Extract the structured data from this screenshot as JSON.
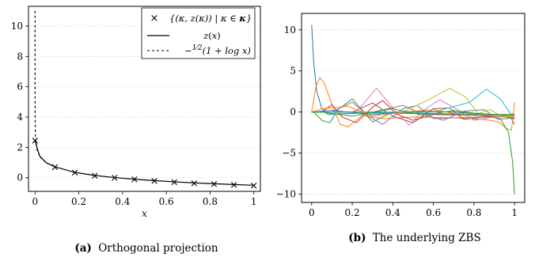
{
  "chart_data": [
    {
      "id": "a",
      "type": "line",
      "caption_label": "(a)",
      "caption_text": "Orthogonal projection",
      "xlabel": "x",
      "ylabel": "",
      "xlim": [
        -0.03,
        1.03
      ],
      "ylim": [
        -0.9,
        11.3
      ],
      "xticks": [
        0,
        0.2,
        0.4,
        0.6,
        0.8,
        1
      ],
      "xtick_labels": [
        "0",
        "0.2",
        "0.4",
        "0.6",
        "0.8",
        "1"
      ],
      "yticks": [
        0,
        2,
        4,
        6,
        8,
        10
      ],
      "ytick_labels": [
        "0",
        "2",
        "4",
        "6",
        "8",
        "10"
      ],
      "grid": "horizontal dotted",
      "legend_placement": "top-right",
      "legend": [
        {
          "marker": "×",
          "label": "{(κ, z(κ)) | κ ∈ κ}"
        },
        {
          "marker": "solid",
          "label": "z(x)"
        },
        {
          "marker": "dashed",
          "label": "−½(1 + log x)"
        }
      ],
      "series": [
        {
          "name": "{(κ, z(κ)) | κ ∈ κ}",
          "style": "marker-x",
          "color": "#000000",
          "points": [
            [
              0,
              2.45
            ],
            [
              0.0909,
              0.72
            ],
            [
              0.1818,
              0.35
            ],
            [
              0.2727,
              0.15
            ],
            [
              0.3636,
              0.01
            ],
            [
              0.4545,
              -0.1
            ],
            [
              0.5455,
              -0.19
            ],
            [
              0.6364,
              -0.27
            ],
            [
              0.7273,
              -0.34
            ],
            [
              0.8182,
              -0.4
            ],
            [
              0.9091,
              -0.45
            ],
            [
              1,
              -0.5
            ]
          ]
        },
        {
          "name": "z(x)",
          "style": "solid",
          "color": "#000000",
          "points": [
            [
              0,
              2.45
            ],
            [
              0.02,
              1.45
            ],
            [
              0.05,
              1.0
            ],
            [
              0.0909,
              0.72
            ],
            [
              0.1818,
              0.35
            ],
            [
              0.2727,
              0.15
            ],
            [
              0.3636,
              0.01
            ],
            [
              0.4545,
              -0.1
            ],
            [
              0.5455,
              -0.19
            ],
            [
              0.6364,
              -0.27
            ],
            [
              0.7273,
              -0.34
            ],
            [
              0.8182,
              -0.4
            ],
            [
              0.9091,
              -0.45
            ],
            [
              1,
              -0.5
            ]
          ]
        },
        {
          "name": "−½(1 + log x)",
          "style": "dashed",
          "color": "#000000",
          "points": [
            [
              1e-07,
              11.0
            ],
            [
              4e-07,
              10.2
            ],
            [
              2e-06,
              8.9
            ],
            [
              1e-05,
              7.4
            ],
            [
              5e-05,
              5.7
            ],
            [
              0.0003,
              4.0
            ],
            [
              0.002,
              2.6
            ],
            [
              0.01,
              1.8
            ],
            [
              0.03,
              1.25
            ],
            [
              0.06,
              0.9
            ]
          ]
        }
      ]
    },
    {
      "id": "b",
      "type": "line",
      "caption_label": "(b)",
      "caption_text": "The underlying ZBS",
      "xlabel": "",
      "ylabel": "",
      "xlim": [
        -0.05,
        1.05
      ],
      "ylim": [
        -11,
        12
      ],
      "xticks": [
        0,
        0.2,
        0.4,
        0.6,
        0.8,
        1
      ],
      "xtick_labels": [
        "0",
        "0.2",
        "0.4",
        "0.6",
        "0.8",
        "1"
      ],
      "yticks": [
        -10,
        -5,
        0,
        5,
        10
      ],
      "ytick_labels": [
        "−10",
        "−5",
        "0",
        "5",
        "10"
      ],
      "grid": "horizontal dotted",
      "series": [
        {
          "color": "#1f77b4",
          "points": [
            [
              0,
              10.6
            ],
            [
              0.01,
              6.0
            ],
            [
              0.025,
              2.5
            ],
            [
              0.05,
              0.4
            ],
            [
              0.08,
              -0.3
            ],
            [
              0.15,
              -0.2
            ],
            [
              0.3,
              -0.1
            ],
            [
              0.6,
              -0.2
            ],
            [
              0.9,
              -0.3
            ],
            [
              0.98,
              -0.6
            ],
            [
              1,
              -1.5
            ]
          ]
        },
        {
          "color": "#ff7f0e",
          "points": [
            [
              0,
              0
            ],
            [
              0.02,
              3.0
            ],
            [
              0.04,
              4.2
            ],
            [
              0.06,
              3.6
            ],
            [
              0.1,
              1.0
            ],
            [
              0.14,
              -1.5
            ],
            [
              0.18,
              -1.8
            ],
            [
              0.25,
              -0.4
            ],
            [
              0.35,
              -0.8
            ],
            [
              0.5,
              -0.6
            ],
            [
              0.7,
              -0.7
            ],
            [
              0.85,
              -0.9
            ],
            [
              0.92,
              -1.2
            ],
            [
              0.96,
              -2.0
            ],
            [
              0.985,
              -2.2
            ],
            [
              1,
              1.2
            ]
          ]
        },
        {
          "color": "#2ca02c",
          "points": [
            [
              0,
              0
            ],
            [
              0.01,
              0
            ],
            [
              0.05,
              -1.0
            ],
            [
              0.09,
              -1.3
            ],
            [
              0.13,
              0.3
            ],
            [
              0.2,
              1.6
            ],
            [
              0.25,
              0.2
            ],
            [
              0.3,
              -1.2
            ],
            [
              0.4,
              0.0
            ],
            [
              0.6,
              -0.2
            ],
            [
              0.8,
              -0.3
            ],
            [
              0.93,
              -0.8
            ],
            [
              0.97,
              -2.5
            ],
            [
              0.99,
              -6.0
            ],
            [
              1,
              -10.0
            ]
          ]
        },
        {
          "color": "#d62728",
          "points": [
            [
              0,
              0
            ],
            [
              0.05,
              0
            ],
            [
              0.1,
              0.9
            ],
            [
              0.15,
              -0.6
            ],
            [
              0.22,
              -1.3
            ],
            [
              0.3,
              0.6
            ],
            [
              0.35,
              1.4
            ],
            [
              0.42,
              -0.3
            ],
            [
              0.5,
              -1.0
            ],
            [
              0.6,
              -0.3
            ],
            [
              0.8,
              -0.4
            ],
            [
              0.95,
              -0.6
            ],
            [
              1,
              -0.8
            ]
          ]
        },
        {
          "color": "#9467bd",
          "points": [
            [
              0,
              0
            ],
            [
              0.1,
              0
            ],
            [
              0.2,
              1.2
            ],
            [
              0.28,
              -0.5
            ],
            [
              0.35,
              -1.5
            ],
            [
              0.45,
              0.4
            ],
            [
              0.52,
              0.8
            ],
            [
              0.6,
              -0.8
            ],
            [
              0.7,
              -0.7
            ],
            [
              0.85,
              -0.6
            ],
            [
              1,
              -0.5
            ]
          ]
        },
        {
          "color": "#8c564b",
          "points": [
            [
              0,
              0
            ],
            [
              0.2,
              0
            ],
            [
              0.3,
              1.1
            ],
            [
              0.4,
              -0.5
            ],
            [
              0.5,
              -1.3
            ],
            [
              0.6,
              0.4
            ],
            [
              0.68,
              0.5
            ],
            [
              0.75,
              -0.9
            ],
            [
              0.85,
              -0.6
            ],
            [
              1,
              -0.6
            ]
          ]
        },
        {
          "color": "#e377c2",
          "points": [
            [
              0,
              0
            ],
            [
              0.22,
              0
            ],
            [
              0.32,
              2.9
            ],
            [
              0.4,
              0.5
            ],
            [
              0.48,
              -1.6
            ],
            [
              0.55,
              0.2
            ],
            [
              0.63,
              1.5
            ],
            [
              0.72,
              0.3
            ],
            [
              0.8,
              -1.0
            ],
            [
              0.9,
              -0.6
            ],
            [
              1,
              -0.6
            ]
          ]
        },
        {
          "color": "#7f7f7f",
          "points": [
            [
              0,
              0
            ],
            [
              0.3,
              0
            ],
            [
              0.45,
              0.8
            ],
            [
              0.55,
              -0.3
            ],
            [
              0.65,
              -1.0
            ],
            [
              0.75,
              0.1
            ],
            [
              0.85,
              0.3
            ],
            [
              0.92,
              -0.9
            ],
            [
              1,
              -0.7
            ]
          ]
        },
        {
          "color": "#bcbd22",
          "points": [
            [
              0,
              0
            ],
            [
              0.45,
              0
            ],
            [
              0.6,
              1.8
            ],
            [
              0.68,
              2.9
            ],
            [
              0.76,
              1.8
            ],
            [
              0.82,
              -0.2
            ],
            [
              0.88,
              0.3
            ],
            [
              0.94,
              -0.6
            ],
            [
              1,
              -0.5
            ]
          ]
        },
        {
          "color": "#17becf",
          "points": [
            [
              0,
              0
            ],
            [
              0.6,
              0
            ],
            [
              0.78,
              1.2
            ],
            [
              0.86,
              2.8
            ],
            [
              0.93,
              1.6
            ],
            [
              0.98,
              -0.2
            ],
            [
              1,
              -0.3
            ]
          ]
        },
        {
          "color": "#1f77b4",
          "points": [
            [
              0,
              0
            ],
            [
              0.1,
              0.2
            ],
            [
              0.3,
              -0.3
            ],
            [
              0.5,
              0.1
            ],
            [
              0.7,
              0.0
            ],
            [
              0.9,
              -0.3
            ],
            [
              1,
              -0.4
            ]
          ]
        },
        {
          "color": "#ff7f0e",
          "points": [
            [
              0,
              0
            ],
            [
              0.05,
              0.4
            ],
            [
              0.18,
              0.7
            ],
            [
              0.3,
              -0.5
            ],
            [
              0.45,
              0.0
            ],
            [
              0.6,
              0.3
            ],
            [
              0.75,
              -0.4
            ],
            [
              1,
              -0.4
            ]
          ]
        },
        {
          "color": "#2ca02c",
          "points": [
            [
              0,
              0
            ],
            [
              0.05,
              0
            ],
            [
              0.2,
              -0.5
            ],
            [
              0.4,
              0.4
            ],
            [
              0.55,
              -0.4
            ],
            [
              0.7,
              0.2
            ],
            [
              0.85,
              -0.3
            ],
            [
              1,
              -0.3
            ]
          ]
        }
      ]
    }
  ]
}
